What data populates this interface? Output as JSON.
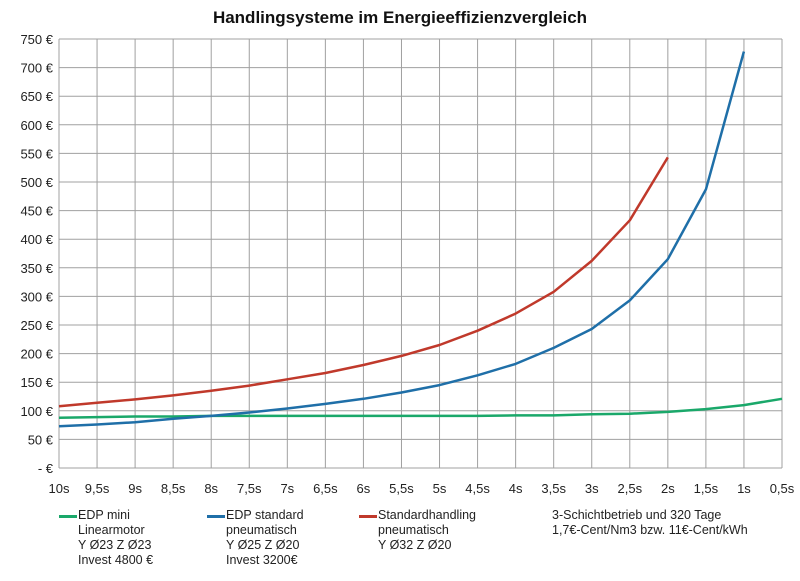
{
  "chart_data": {
    "type": "line",
    "title": "Handlingsysteme im Energieeffizienzvergleich",
    "categories": [
      "10s",
      "9,5s",
      "9s",
      "8,5s",
      "8s",
      "7,5s",
      "7s",
      "6,5s",
      "6s",
      "5,5s",
      "5s",
      "4,5s",
      "4s",
      "3,5s",
      "3s",
      "2,5s",
      "2s",
      "1,5s",
      "1s",
      "0,5s"
    ],
    "y_ticks": [
      "- €",
      "50 €",
      "100 €",
      "150 €",
      "200 €",
      "250 €",
      "300 €",
      "350 €",
      "400 €",
      "450 €",
      "500 €",
      "550 €",
      "600 €",
      "650 €",
      "700 €",
      "750 €"
    ],
    "ylim": [
      0,
      750
    ],
    "grid": true,
    "legend_position": "bottom",
    "series": [
      {
        "name": "EDP mini",
        "legend_lines": [
          "EDP mini",
          "Linearmotor",
          "Y Ø23 Z Ø23",
          "Invest 4800 €"
        ],
        "color": "#1aa86a",
        "values": [
          88,
          89,
          90,
          90,
          91,
          91,
          91,
          91,
          91,
          91,
          91,
          91,
          92,
          92,
          94,
          95,
          98,
          103,
          110,
          121
        ]
      },
      {
        "name": "EDP standard",
        "legend_lines": [
          "EDP standard",
          "pneumatisch",
          "Y Ø25 Z Ø20",
          "Invest 3200€"
        ],
        "color": "#1f6fa8",
        "values": [
          73,
          76,
          80,
          86,
          91,
          97,
          104,
          112,
          121,
          132,
          145,
          162,
          182,
          210,
          243,
          293,
          365,
          487,
          728,
          null
        ]
      },
      {
        "name": "Standardhandling",
        "legend_lines": [
          "Standardhandling",
          "pneumatisch",
          "Y Ø32 Z Ø20"
        ],
        "color": "#c0392b",
        "values": [
          108,
          114,
          120,
          127,
          135,
          144,
          155,
          166,
          180,
          196,
          215,
          240,
          270,
          308,
          362,
          433,
          543,
          null,
          null,
          null
        ]
      }
    ],
    "note_lines": [
      "3-Schichtbetrieb und 320 Tage",
      "1,7€-Cent/Nm3  bzw. 11€-Cent/kWh"
    ]
  }
}
